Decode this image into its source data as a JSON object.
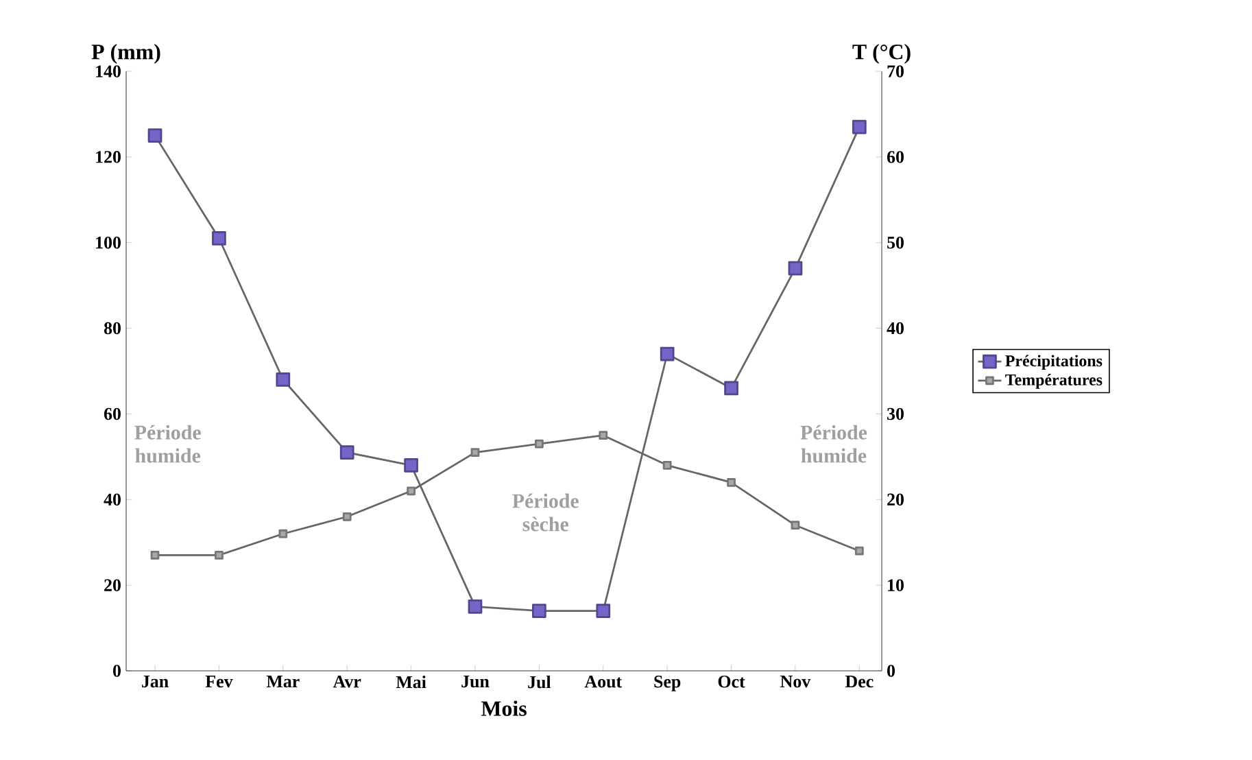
{
  "chart_data": {
    "type": "line",
    "xlabel": "Mois",
    "ylabel": "P (mm)",
    "y2label": "T (°C)",
    "categories": [
      "Jan",
      "Fev",
      "Mar",
      "Avr",
      "Mai",
      "Jun",
      "Jul",
      "Aout",
      "Sep",
      "Oct",
      "Nov",
      "Dec"
    ],
    "series": [
      {
        "name": "Précipitations",
        "color": "#7466c8",
        "values": [
          125,
          101,
          68,
          51,
          48,
          15,
          14,
          14,
          74,
          66,
          94,
          127
        ]
      },
      {
        "name": "Températures",
        "color": "#a8a8a8",
        "axis": "y2",
        "values": [
          13.5,
          13.5,
          16,
          18,
          21,
          25.5,
          26.5,
          27.5,
          24,
          22,
          17,
          14
        ]
      }
    ],
    "ylim": [
      0,
      140
    ],
    "yticks": [
      0,
      20,
      40,
      60,
      80,
      100,
      120,
      140
    ],
    "y2lim": [
      0,
      70
    ],
    "y2ticks": [
      0,
      10,
      20,
      30,
      40,
      50,
      60,
      70
    ],
    "marker": "square",
    "legend": "right",
    "annotations": [
      "Période humide",
      "Période sèche",
      "Période humide"
    ]
  }
}
